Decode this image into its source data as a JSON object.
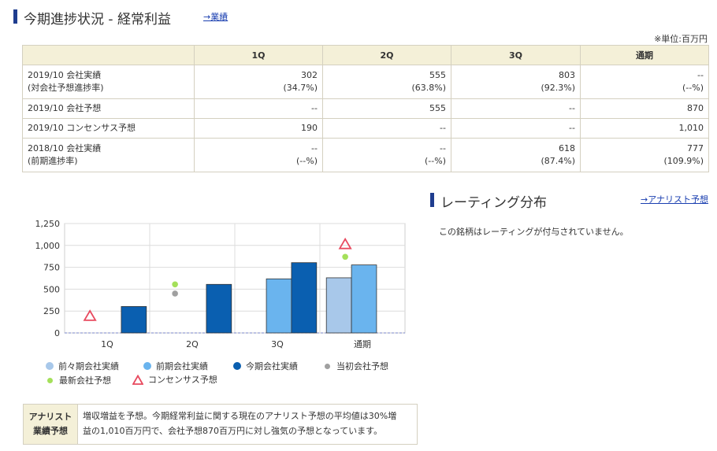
{
  "progress": {
    "title": "今期進捗状況 - 経常利益",
    "link": "→業績",
    "unit": "※単位:百万円",
    "columns": [
      "",
      "1Q",
      "2Q",
      "3Q",
      "通期"
    ],
    "rows": [
      {
        "label": [
          "2019/10 会社実績",
          "(対会社予想進捗率)"
        ],
        "cells": [
          [
            "302",
            "(34.7%)"
          ],
          [
            "555",
            "(63.8%)"
          ],
          [
            "803",
            "(92.3%)"
          ],
          [
            "--",
            "(--%)"
          ]
        ]
      },
      {
        "label": [
          "2019/10 会社予想"
        ],
        "cells": [
          [
            "--"
          ],
          [
            "555"
          ],
          [
            "--"
          ],
          [
            "870"
          ]
        ]
      },
      {
        "label": [
          "2019/10 コンセンサス予想"
        ],
        "cells": [
          [
            "190"
          ],
          [
            "--"
          ],
          [
            "--"
          ],
          [
            "1,010"
          ]
        ]
      },
      {
        "label": [
          "2018/10 会社実績",
          "(前期進捗率)"
        ],
        "cells": [
          [
            "--",
            "(--%)"
          ],
          [
            "--",
            "(--%)"
          ],
          [
            "618",
            "(87.4%)"
          ],
          [
            "777",
            "(109.9%)"
          ]
        ]
      }
    ]
  },
  "rating": {
    "title": "レーティング分布",
    "link": "→アナリスト予想",
    "message": "この銘柄はレーティングが付与されていません。"
  },
  "chart_data": {
    "type": "bar",
    "categories": [
      "1Q",
      "2Q",
      "3Q",
      "通期"
    ],
    "ylim": [
      0,
      1250
    ],
    "yticks": [
      "0",
      "250",
      "500",
      "750",
      "1,000",
      "1,250"
    ],
    "grid": true,
    "series": [
      {
        "name": "前々期会社実績",
        "values": [
          null,
          null,
          null,
          630
        ],
        "color": "#a8c8ea"
      },
      {
        "name": "前期会社実績",
        "values": [
          null,
          null,
          618,
          777
        ],
        "color": "#6ab4ee"
      },
      {
        "name": "今期会社実績",
        "values": [
          302,
          555,
          803,
          null
        ],
        "color": "#0a5fb0"
      },
      {
        "name": "当初会社予想",
        "values": [
          null,
          450,
          null,
          null
        ],
        "color": "#a0a0a0",
        "marker": "dot"
      },
      {
        "name": "最新会社予想",
        "values": [
          null,
          555,
          null,
          870
        ],
        "color": "#a4e05a",
        "marker": "dot"
      },
      {
        "name": "コンセンサス予想",
        "values": [
          190,
          null,
          null,
          1010
        ],
        "color": "#e84a5f",
        "marker": "triangle"
      }
    ]
  },
  "analyst": {
    "label": [
      "アナリスト",
      "業績予想"
    ],
    "text": [
      "増収増益を予想。今期経常利益に関する現在のアナリスト予想の平均値は30%増",
      "益の1,010百万円で、会社予想870百万円に対し強気の予想となっています。"
    ]
  }
}
